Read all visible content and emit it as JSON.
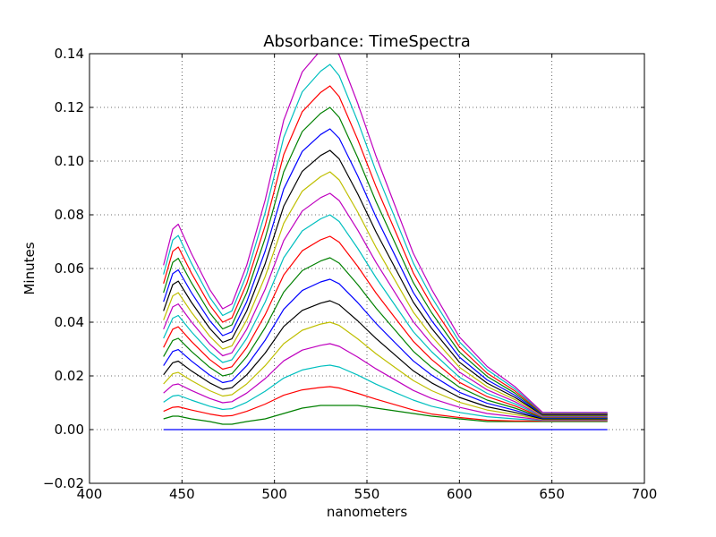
{
  "chart_data": {
    "type": "line",
    "title": "Absorbance: TimeSpectra",
    "xlabel": "nanometers",
    "ylabel": "Minutes",
    "xlim": [
      400,
      700
    ],
    "ylim": [
      -0.02,
      0.14
    ],
    "grid": true,
    "x_ticks": [
      400,
      450,
      500,
      550,
      600,
      650,
      700
    ],
    "x_tick_labels": [
      "400",
      "450",
      "500",
      "550",
      "600",
      "650",
      "700"
    ],
    "y_ticks": [
      -0.02,
      0.0,
      0.02,
      0.04,
      0.06,
      0.08,
      0.1,
      0.12,
      0.14
    ],
    "y_tick_labels": [
      "−0.02",
      "0.00",
      "0.02",
      "0.04",
      "0.06",
      "0.08",
      "0.10",
      "0.12",
      "0.14"
    ],
    "x": [
      440,
      445,
      448,
      455,
      465,
      472,
      477,
      485,
      495,
      505,
      515,
      525,
      530,
      535,
      545,
      555,
      565,
      575,
      585,
      600,
      615,
      630,
      645,
      655,
      665,
      672,
      680
    ],
    "series": [
      {
        "color": "#0000ff",
        "values": [
          0,
          0,
          0,
          0,
          0,
          0,
          0,
          0,
          0,
          0,
          0,
          0,
          0,
          0,
          0,
          0,
          0,
          0,
          0,
          0,
          0,
          0,
          0,
          0,
          0,
          0,
          0
        ]
      },
      {
        "color": "#008000",
        "values": [
          0.004,
          0.005,
          0.005,
          0.004,
          0.003,
          0.002,
          0.002,
          0.003,
          0.004,
          0.006,
          0.008,
          0.009,
          0.009,
          0.009,
          0.009,
          0.008,
          0.007,
          0.006,
          0.005,
          0.004,
          0.003,
          0.003,
          0.003,
          0.003,
          0.003,
          0.003,
          0.003
        ]
      },
      {
        "color": "#ff0000",
        "values": [
          0.0068,
          0.0083,
          0.0085,
          0.0073,
          0.0058,
          0.005,
          0.0052,
          0.0068,
          0.0095,
          0.0128,
          0.0148,
          0.0157,
          0.016,
          0.0155,
          0.0135,
          0.0113,
          0.0093,
          0.0073,
          0.0058,
          0.0045,
          0.0035,
          0.0032,
          0.0032,
          0.0032,
          0.0032,
          0.0032,
          0.0032
        ]
      },
      {
        "color": "#00bfbf",
        "values": [
          0.0102,
          0.0125,
          0.0128,
          0.011,
          0.0087,
          0.0075,
          0.0078,
          0.0102,
          0.0143,
          0.0192,
          0.0222,
          0.0236,
          0.024,
          0.0233,
          0.0203,
          0.0169,
          0.0139,
          0.011,
          0.0087,
          0.0064,
          0.0048,
          0.004,
          0.0034,
          0.0034,
          0.0034,
          0.0034,
          0.0034
        ]
      },
      {
        "color": "#bf00bf",
        "values": [
          0.0136,
          0.0166,
          0.017,
          0.0146,
          0.0116,
          0.01,
          0.0104,
          0.0136,
          0.019,
          0.0256,
          0.0296,
          0.0314,
          0.032,
          0.031,
          0.027,
          0.0226,
          0.0186,
          0.0146,
          0.0116,
          0.0083,
          0.006,
          0.0048,
          0.0036,
          0.0036,
          0.0036,
          0.0036,
          0.0036
        ]
      },
      {
        "color": "#bfbf00",
        "values": [
          0.017,
          0.0208,
          0.0213,
          0.0183,
          0.0145,
          0.0125,
          0.013,
          0.017,
          0.0238,
          0.032,
          0.037,
          0.0393,
          0.04,
          0.0388,
          0.0338,
          0.0282,
          0.0232,
          0.0183,
          0.0145,
          0.0102,
          0.0073,
          0.0056,
          0.0038,
          0.0038,
          0.0038,
          0.0038,
          0.0038
        ]
      },
      {
        "color": "#000000",
        "values": [
          0.0204,
          0.0249,
          0.0255,
          0.0219,
          0.0174,
          0.015,
          0.0156,
          0.0204,
          0.0285,
          0.0384,
          0.0444,
          0.0471,
          0.048,
          0.0465,
          0.0405,
          0.0339,
          0.0279,
          0.0219,
          0.0174,
          0.012,
          0.0085,
          0.0064,
          0.004,
          0.004,
          0.004,
          0.004,
          0.004
        ]
      },
      {
        "color": "#0000ff",
        "values": [
          0.0238,
          0.0291,
          0.0298,
          0.0256,
          0.0203,
          0.0175,
          0.0182,
          0.0238,
          0.0333,
          0.0448,
          0.0518,
          0.055,
          0.056,
          0.0543,
          0.0473,
          0.0395,
          0.0325,
          0.0256,
          0.0203,
          0.0139,
          0.0098,
          0.0072,
          0.0042,
          0.0042,
          0.0042,
          0.0042,
          0.0042
        ]
      },
      {
        "color": "#008000",
        "values": [
          0.0272,
          0.0332,
          0.034,
          0.0292,
          0.0232,
          0.02,
          0.0208,
          0.0272,
          0.038,
          0.0512,
          0.0592,
          0.0628,
          0.064,
          0.062,
          0.054,
          0.0452,
          0.0372,
          0.0292,
          0.0232,
          0.0158,
          0.011,
          0.008,
          0.0044,
          0.0044,
          0.0044,
          0.0044,
          0.0044
        ]
      },
      {
        "color": "#ff0000",
        "values": [
          0.0306,
          0.0374,
          0.0383,
          0.0329,
          0.0261,
          0.0225,
          0.0234,
          0.0306,
          0.0428,
          0.0576,
          0.0666,
          0.0707,
          0.072,
          0.0698,
          0.0608,
          0.0508,
          0.0418,
          0.0329,
          0.0261,
          0.0176,
          0.0123,
          0.0088,
          0.0046,
          0.0046,
          0.0046,
          0.0046,
          0.0046
        ]
      },
      {
        "color": "#00bfbf",
        "values": [
          0.034,
          0.0415,
          0.0425,
          0.0365,
          0.029,
          0.025,
          0.026,
          0.034,
          0.0475,
          0.064,
          0.074,
          0.0785,
          0.08,
          0.0775,
          0.0675,
          0.0565,
          0.0465,
          0.0365,
          0.029,
          0.0195,
          0.0135,
          0.0096,
          0.0048,
          0.0048,
          0.0048,
          0.0048,
          0.0048
        ]
      },
      {
        "color": "#bf00bf",
        "values": [
          0.0374,
          0.0457,
          0.0468,
          0.0402,
          0.0319,
          0.0275,
          0.0286,
          0.0374,
          0.0523,
          0.0704,
          0.0814,
          0.0864,
          0.088,
          0.0853,
          0.0743,
          0.0622,
          0.0512,
          0.0402,
          0.0319,
          0.0214,
          0.0148,
          0.0104,
          0.005,
          0.005,
          0.005,
          0.005,
          0.005
        ]
      },
      {
        "color": "#bfbf00",
        "values": [
          0.0408,
          0.0498,
          0.051,
          0.0438,
          0.0348,
          0.03,
          0.0312,
          0.0408,
          0.057,
          0.0768,
          0.0888,
          0.0942,
          0.096,
          0.093,
          0.081,
          0.0678,
          0.0558,
          0.0438,
          0.0348,
          0.0232,
          0.016,
          0.0112,
          0.0052,
          0.0052,
          0.0052,
          0.0052,
          0.0052
        ]
      },
      {
        "color": "#000000",
        "values": [
          0.0442,
          0.054,
          0.0553,
          0.0475,
          0.0377,
          0.0325,
          0.0338,
          0.0442,
          0.0618,
          0.0832,
          0.0962,
          0.1021,
          0.104,
          0.1008,
          0.0878,
          0.0735,
          0.0605,
          0.0475,
          0.0377,
          0.0251,
          0.0173,
          0.012,
          0.0054,
          0.0054,
          0.0054,
          0.0054,
          0.0054
        ]
      },
      {
        "color": "#0000ff",
        "values": [
          0.0476,
          0.0581,
          0.0595,
          0.0511,
          0.0406,
          0.035,
          0.0364,
          0.0476,
          0.0665,
          0.0896,
          0.1036,
          0.1099,
          0.112,
          0.1085,
          0.0945,
          0.0791,
          0.0651,
          0.0511,
          0.0406,
          0.027,
          0.0185,
          0.0128,
          0.0056,
          0.0056,
          0.0056,
          0.0056,
          0.0056
        ]
      },
      {
        "color": "#008000",
        "values": [
          0.051,
          0.0623,
          0.0638,
          0.0548,
          0.0435,
          0.0375,
          0.039,
          0.051,
          0.0713,
          0.096,
          0.111,
          0.1178,
          0.12,
          0.1163,
          0.1013,
          0.0848,
          0.0698,
          0.0548,
          0.0435,
          0.0289,
          0.0198,
          0.0136,
          0.0058,
          0.0058,
          0.0058,
          0.0058,
          0.0058
        ]
      },
      {
        "color": "#ff0000",
        "values": [
          0.0544,
          0.0664,
          0.068,
          0.0584,
          0.0464,
          0.04,
          0.0416,
          0.0544,
          0.076,
          0.1024,
          0.1184,
          0.1256,
          0.128,
          0.124,
          0.108,
          0.0904,
          0.0744,
          0.0584,
          0.0464,
          0.0308,
          0.021,
          0.0144,
          0.006,
          0.006,
          0.006,
          0.006,
          0.006
        ]
      },
      {
        "color": "#00bfbf",
        "values": [
          0.0578,
          0.0706,
          0.0723,
          0.0621,
          0.0493,
          0.0425,
          0.0442,
          0.0578,
          0.0808,
          0.1088,
          0.1258,
          0.1335,
          0.136,
          0.1318,
          0.1148,
          0.0961,
          0.0791,
          0.0621,
          0.0493,
          0.0327,
          0.0223,
          0.0152,
          0.0062,
          0.0062,
          0.0062,
          0.0062,
          0.0062
        ]
      },
      {
        "color": "#bf00bf",
        "values": [
          0.0612,
          0.0747,
          0.0765,
          0.0657,
          0.0522,
          0.045,
          0.0468,
          0.0612,
          0.0855,
          0.1152,
          0.1332,
          0.1413,
          0.144,
          0.1395,
          0.1215,
          0.1017,
          0.0837,
          0.0657,
          0.0522,
          0.0345,
          0.0235,
          0.016,
          0.0064,
          0.0064,
          0.0064,
          0.0064,
          0.0064
        ]
      }
    ]
  }
}
